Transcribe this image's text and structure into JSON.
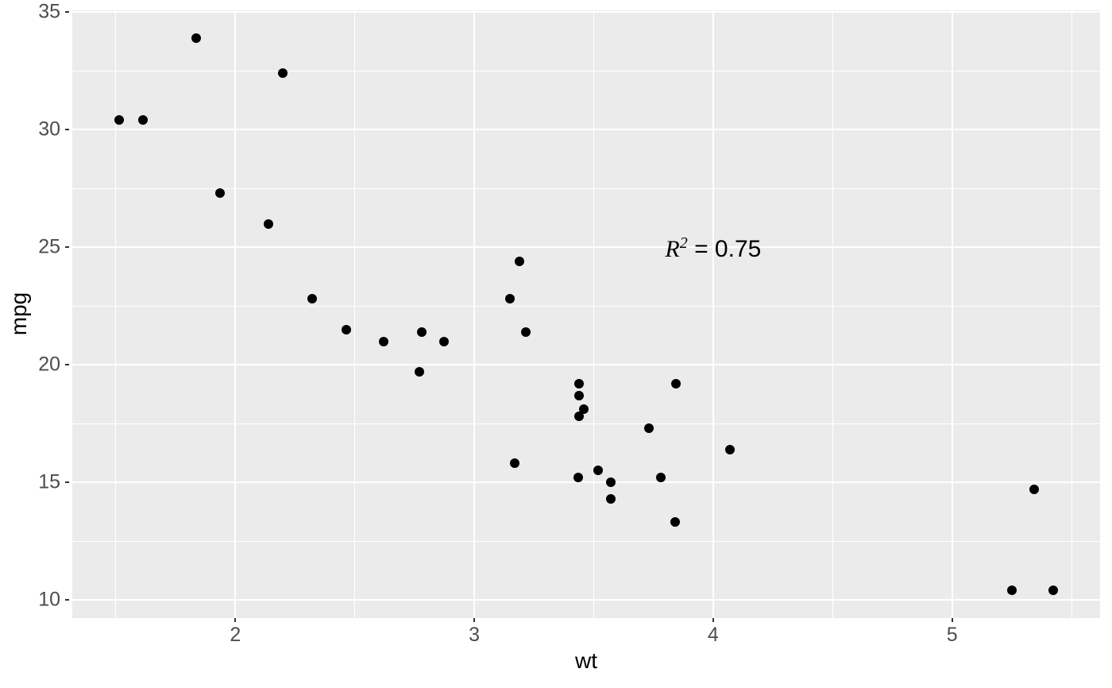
{
  "figure": {
    "background": "#FFFFFF",
    "panel_background": "#EBEBEB",
    "grid_color": "#FFFFFF",
    "point_color": "#000000",
    "tick_mark_color": "#333333",
    "tick_label_color": "#4D4D4D",
    "axis_title_color": "#000000",
    "annotation_color": "#000000"
  },
  "chart_data": {
    "type": "scatter",
    "title": "",
    "xlabel": "wt",
    "ylabel": "mpg",
    "xlim": [
      1.3175,
      5.6195
    ],
    "ylim": [
      9.225,
      35.075
    ],
    "x_major_ticks": [
      2,
      3,
      4,
      5
    ],
    "x_minor_gridlines": [
      1.5,
      2.5,
      3.5,
      4.5,
      5.5
    ],
    "y_major_ticks": [
      10,
      15,
      20,
      25,
      30,
      35
    ],
    "y_minor_gridlines": [
      12.5,
      17.5,
      22.5,
      27.5,
      32.5
    ],
    "grid": true,
    "legend_position": "none",
    "points": [
      [
        2.62,
        21.0
      ],
      [
        2.875,
        21.0
      ],
      [
        2.32,
        22.8
      ],
      [
        3.215,
        21.4
      ],
      [
        3.44,
        18.7
      ],
      [
        3.46,
        18.1
      ],
      [
        3.57,
        14.3
      ],
      [
        3.19,
        24.4
      ],
      [
        3.15,
        22.8
      ],
      [
        3.44,
        19.2
      ],
      [
        3.44,
        17.8
      ],
      [
        4.07,
        16.4
      ],
      [
        3.73,
        17.3
      ],
      [
        3.78,
        15.2
      ],
      [
        5.25,
        10.4
      ],
      [
        5.424,
        10.4
      ],
      [
        5.345,
        14.7
      ],
      [
        2.2,
        32.4
      ],
      [
        1.615,
        30.4
      ],
      [
        1.835,
        33.9
      ],
      [
        2.465,
        21.5
      ],
      [
        3.52,
        15.5
      ],
      [
        3.435,
        15.2
      ],
      [
        3.84,
        13.3
      ],
      [
        3.845,
        19.2
      ],
      [
        1.935,
        27.3
      ],
      [
        2.14,
        26.0
      ],
      [
        1.513,
        30.4
      ],
      [
        3.17,
        15.8
      ],
      [
        2.77,
        19.7
      ],
      [
        3.57,
        15.0
      ],
      [
        2.78,
        21.4
      ]
    ],
    "annotation": {
      "text_r": "R",
      "text_sup": "2",
      "text_rest": " = 0.75",
      "full_text": "R2 = 0.75",
      "x": 4.0,
      "y": 24.9
    }
  }
}
